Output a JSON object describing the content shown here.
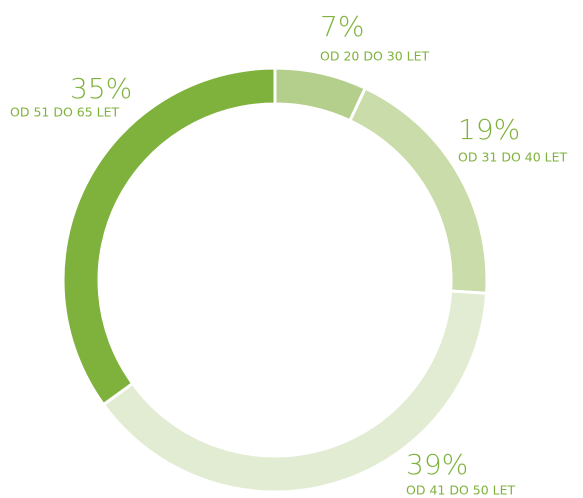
{
  "chart_data": {
    "type": "donut",
    "categories": [
      "OD 20 DO 30 LET",
      "OD 31 DO 40 LET",
      "OD 41 DO 50 LET",
      "OD 51 DO 65 LET"
    ],
    "values": [
      7,
      19,
      39,
      35
    ],
    "value_labels": [
      "7%",
      "19%",
      "39%",
      "35%"
    ],
    "colors": [
      "#b3cf8b",
      "#c9dca9",
      "#e2ecd2",
      "#7fb23c"
    ]
  }
}
